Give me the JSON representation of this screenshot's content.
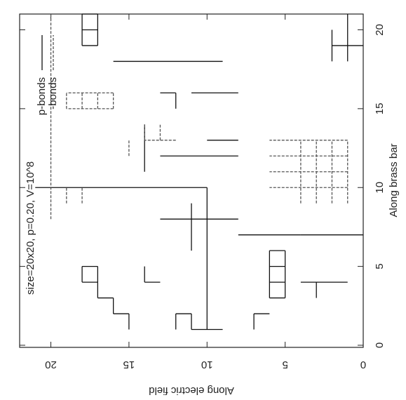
{
  "chart_data": {
    "type": "segments",
    "legend_title": "size=20x20, p=0.20, V=10^8",
    "xlabel": "Along brass bar",
    "ylabel": "Along electric field",
    "xlim": [
      0,
      21
    ],
    "xticks": [
      0,
      5,
      10,
      15,
      20
    ],
    "ylim": [
      0,
      22
    ],
    "yticks": [
      0,
      5,
      10,
      15,
      20
    ],
    "series": [
      {
        "name": "p-bonds",
        "color": "#111111",
        "style": "solid",
        "segments": [
          [
            1,
            15,
            2,
            15
          ],
          [
            2,
            15,
            2,
            16
          ],
          [
            2,
            16,
            3,
            16
          ],
          [
            3,
            16,
            3,
            17
          ],
          [
            3,
            17,
            4,
            17
          ],
          [
            4,
            17,
            4,
            18
          ],
          [
            4,
            18,
            5,
            18
          ],
          [
            5,
            17,
            5,
            18
          ],
          [
            4,
            17,
            5,
            17
          ],
          [
            4,
            14,
            5,
            14
          ],
          [
            4,
            13,
            4,
            14
          ],
          [
            1,
            12,
            2,
            12
          ],
          [
            2,
            11,
            2,
            12
          ],
          [
            1,
            11,
            2,
            11
          ],
          [
            1,
            10,
            10,
            10
          ],
          [
            1,
            9,
            1,
            11
          ],
          [
            1,
            7,
            2,
            7
          ],
          [
            2,
            6,
            2,
            7
          ],
          [
            3,
            5,
            6,
            5
          ],
          [
            3,
            6,
            6,
            6
          ],
          [
            3,
            5,
            3,
            6
          ],
          [
            4,
            5,
            4,
            6
          ],
          [
            5,
            5,
            5,
            6
          ],
          [
            6,
            5,
            6,
            6
          ],
          [
            10,
            10,
            10,
            21
          ],
          [
            19,
            17,
            21,
            17
          ],
          [
            19,
            18,
            21,
            18
          ],
          [
            19,
            17,
            19,
            18
          ],
          [
            20,
            17,
            20,
            18
          ],
          [
            21,
            17,
            21,
            18
          ],
          [
            18,
            9,
            18,
            16
          ],
          [
            16,
            8,
            16,
            11
          ],
          [
            4,
            1,
            4,
            4
          ],
          [
            3,
            3,
            4,
            3
          ],
          [
            18,
            1,
            21,
            1
          ],
          [
            18,
            2,
            20,
            2
          ],
          [
            19,
            0,
            19,
            2
          ],
          [
            15,
            12,
            16,
            12
          ],
          [
            16,
            12,
            16,
            13
          ],
          [
            7,
            0,
            7,
            4
          ],
          [
            7,
            4,
            7,
            8
          ],
          [
            12,
            8,
            12,
            13
          ],
          [
            8,
            8,
            8,
            13
          ],
          [
            13,
            8,
            13,
            10
          ],
          [
            11,
            14,
            14,
            14
          ],
          [
            6,
            11,
            9,
            11
          ]
        ]
      },
      {
        "name": "-bonds",
        "color": "#555555",
        "style": "dashed",
        "segments": [
          [
            9,
            1,
            13,
            1
          ],
          [
            9,
            2,
            13,
            2
          ],
          [
            9,
            3,
            13,
            3
          ],
          [
            9,
            4,
            13,
            4
          ],
          [
            10,
            1,
            10,
            6
          ],
          [
            11,
            1,
            11,
            6
          ],
          [
            12,
            1,
            12,
            6
          ],
          [
            13,
            1,
            13,
            6
          ],
          [
            15,
            16,
            16,
            16
          ],
          [
            15,
            17,
            16,
            17
          ],
          [
            15,
            18,
            16,
            18
          ],
          [
            15,
            19,
            16,
            19
          ],
          [
            15,
            16,
            15,
            19
          ],
          [
            16,
            16,
            16,
            19
          ],
          [
            13,
            13,
            14,
            13
          ],
          [
            13,
            14,
            14,
            14
          ],
          [
            13,
            12,
            13,
            14
          ],
          [
            9,
            18,
            10,
            18
          ],
          [
            9,
            19,
            10,
            19
          ],
          [
            12,
            15,
            13,
            15
          ],
          [
            8,
            20,
            21,
            20
          ]
        ]
      }
    ]
  }
}
